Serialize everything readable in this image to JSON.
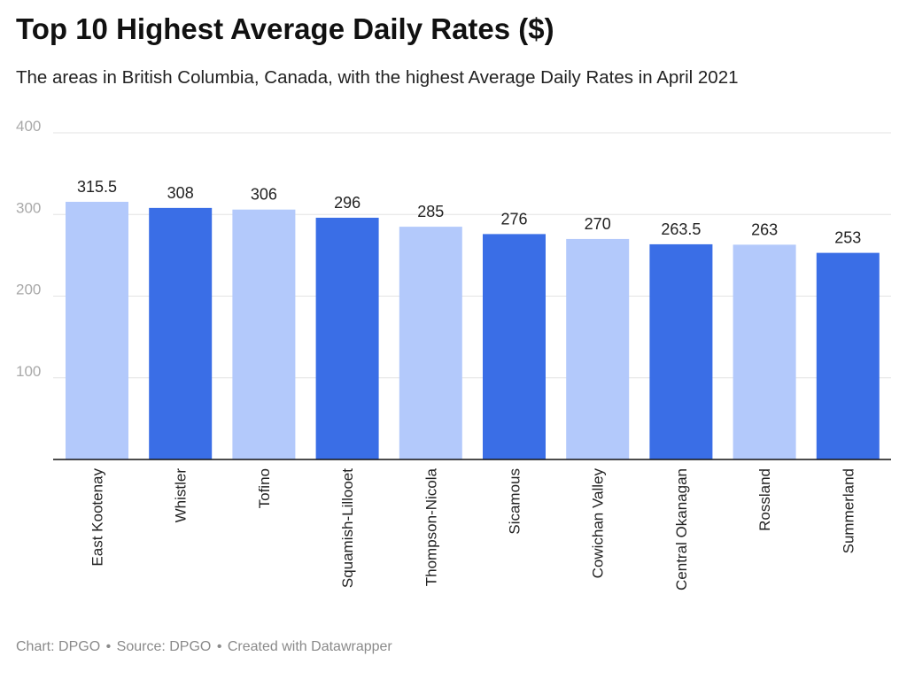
{
  "page": {
    "title": "Top 10 Highest Average Daily Rates ($)",
    "subtitle": "The areas in British Columbia, Canada, with the highest Average Daily Rates in April 2021",
    "footer": {
      "chart_credit": "Chart: DPGO",
      "source_credit": "Source: DPGO",
      "created_credit": "Created with Datawrapper",
      "separator": "•"
    }
  },
  "colors": {
    "light_bar": "#b3c9fb",
    "dark_bar": "#3a6ee6",
    "grid": "#e3e3e3",
    "axis": "#111111",
    "tick_label": "#a9a9a9"
  },
  "chart_data": {
    "type": "bar",
    "title": "Top 10 Highest Average Daily Rates ($)",
    "subtitle": "The areas in British Columbia, Canada, with the highest Average Daily Rates in April 2021",
    "categories": [
      "East Kootenay",
      "Whistler",
      "Tofino",
      "Squamish-Lillooet",
      "Thompson-Nicola",
      "Sicamous",
      "Cowichan Valley",
      "Central Okanagan",
      "Rossland",
      "Summerland"
    ],
    "values": [
      315.5,
      308,
      306,
      296,
      285,
      276,
      270,
      263.5,
      263,
      253
    ],
    "bar_colors": [
      "#b3c9fb",
      "#3a6ee6",
      "#b3c9fb",
      "#3a6ee6",
      "#b3c9fb",
      "#3a6ee6",
      "#b3c9fb",
      "#3a6ee6",
      "#b3c9fb",
      "#3a6ee6"
    ],
    "y_ticks": [
      100,
      200,
      300,
      400
    ],
    "ylim": [
      0,
      400
    ],
    "grid": true,
    "legend": "none",
    "data_labels": true,
    "x_label_orientation": "vertical"
  }
}
